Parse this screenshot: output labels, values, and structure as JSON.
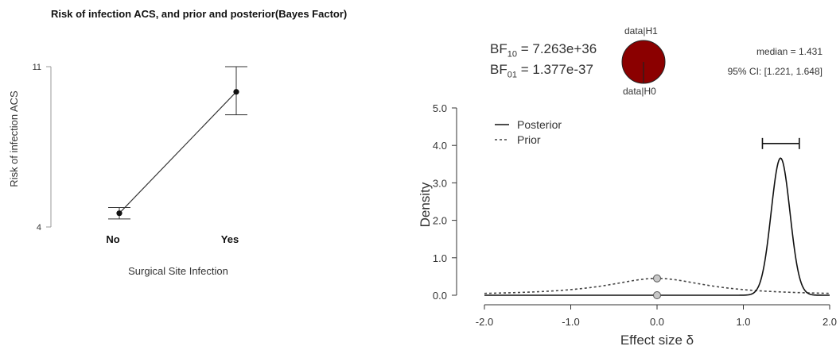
{
  "title": "Risk of infection ACS, and prior and posterior(Bayes  Factor)",
  "bayes": {
    "bf10_label": "BF",
    "bf10_sub": "10",
    "bf10_value": "= 7.263e+36",
    "bf01_label": "BF",
    "bf01_sub": "01",
    "bf01_value": "= 1.377e-37",
    "pie_top": "data|H1",
    "pie_bottom": "data|H0",
    "pie_color": "#8b0000",
    "median": "median = 1.431",
    "ci": "95% CI: [1.221, 1.648]"
  },
  "chart_data": [
    {
      "type": "line",
      "xlabel": "Surgical Site Infection",
      "ylabel": "Risk of infection ACS",
      "categories": [
        "No",
        "Yes"
      ],
      "values": [
        4.6,
        9.9
      ],
      "error_low": [
        4.35,
        8.9
      ],
      "error_high": [
        4.85,
        11.0
      ],
      "ylim": [
        4,
        11
      ],
      "yticks": [
        "4",
        "11"
      ]
    },
    {
      "type": "line",
      "xlabel": "Effect size δ",
      "ylabel": "Density",
      "xlim": [
        -2.0,
        2.0
      ],
      "ylim": [
        0.0,
        5.0
      ],
      "xticks": [
        "-2.0",
        "-1.0",
        "0.0",
        "1.0",
        "2.0"
      ],
      "yticks": [
        "0.0",
        "1.0",
        "2.0",
        "3.0",
        "4.0",
        "5.0"
      ],
      "series": [
        {
          "name": "Posterior",
          "style": "solid",
          "distribution": "normal",
          "mean": 1.431,
          "sd": 0.109
        },
        {
          "name": "Prior",
          "style": "dotted",
          "distribution": "cauchy",
          "location": 0,
          "scale": 0.707
        }
      ],
      "points_at_zero": [
        {
          "label": "prior_density_at_0",
          "x": 0.0,
          "y": 0.45
        },
        {
          "label": "posterior_density_at_0",
          "x": 0.0,
          "y": 0.0
        }
      ],
      "ci_interval": [
        1.221,
        1.648
      ],
      "ci_bar_height": 4.05
    }
  ]
}
